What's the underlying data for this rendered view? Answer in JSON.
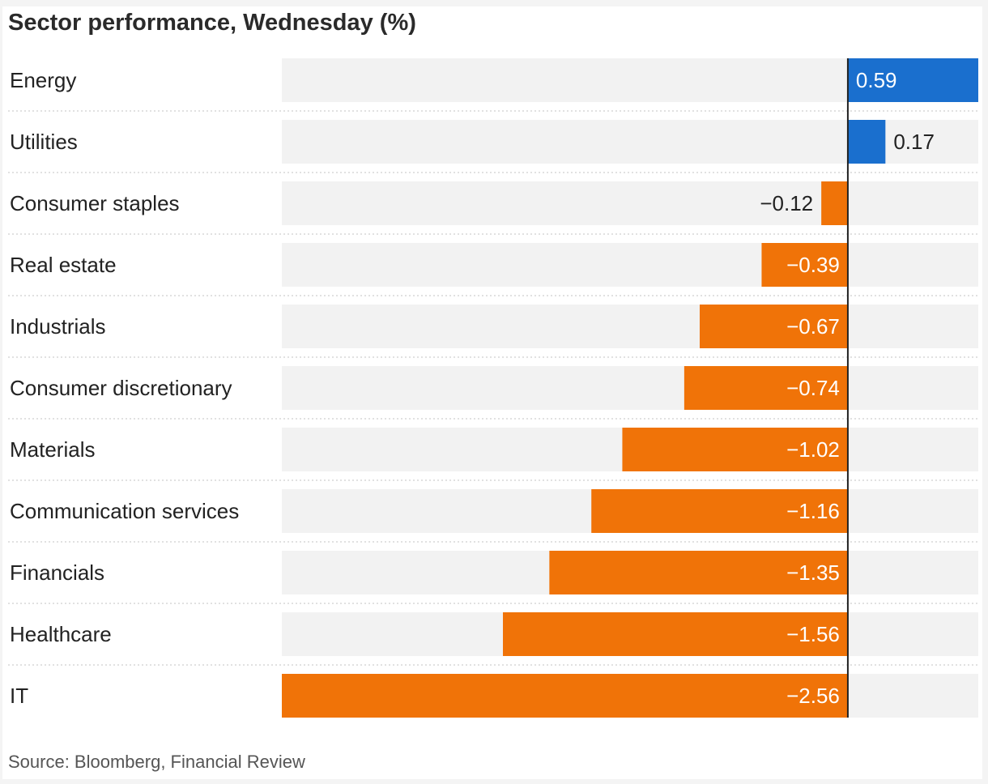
{
  "title": "Sector performance, Wednesday (%)",
  "source": "Source: Bloomberg, Financial Review",
  "colors": {
    "positive": "#1a6fce",
    "negative": "#f07308",
    "track": "#f2f2f2",
    "axis": "#222222",
    "separator": "#cfcfcf"
  },
  "chart_data": {
    "type": "bar",
    "orientation": "horizontal",
    "title": "Sector performance, Wednesday (%)",
    "categories": [
      "Energy",
      "Utilities",
      "Consumer staples",
      "Real estate",
      "Industrials",
      "Consumer discretionary",
      "Materials",
      "Communication services",
      "Financials",
      "Healthcare",
      "IT"
    ],
    "values": [
      0.59,
      0.17,
      -0.12,
      -0.39,
      -0.67,
      -0.74,
      -1.02,
      -1.16,
      -1.35,
      -1.56,
      -2.56
    ],
    "value_labels": [
      "0.59",
      "0.17",
      "−0.12",
      "−0.39",
      "−0.67",
      "−0.74",
      "−1.02",
      "−1.16",
      "−1.35",
      "−1.56",
      "−2.56"
    ],
    "xlim": [
      -2.56,
      0.59
    ],
    "xlabel": "",
    "ylabel": "",
    "grid": false,
    "legend": "none"
  }
}
